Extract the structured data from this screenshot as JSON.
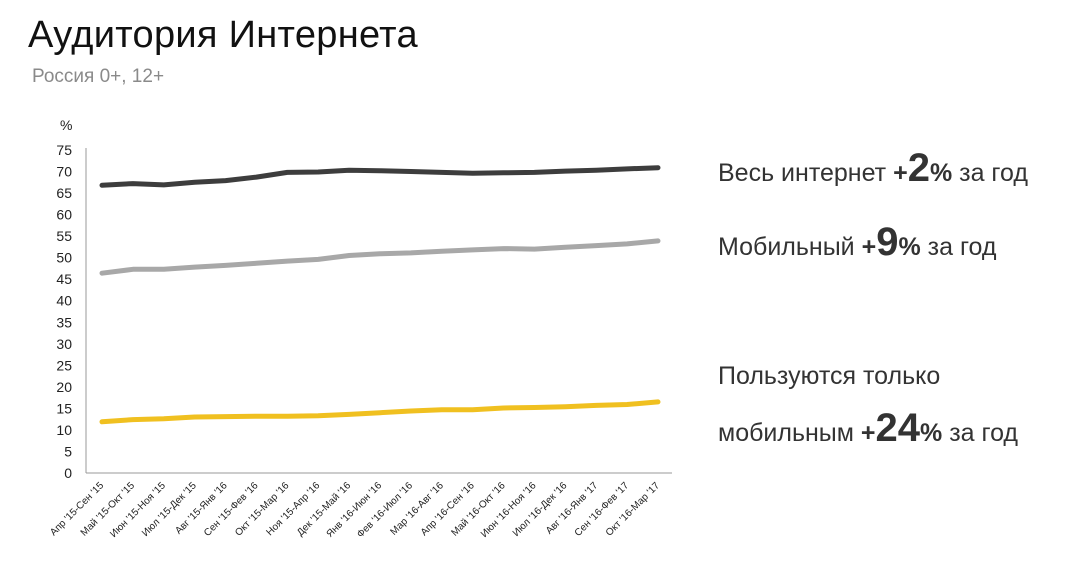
{
  "title": "Аудитория Интернета",
  "subtitle": "Россия 0+, 12+",
  "chart_data": {
    "type": "line",
    "ylabel": "%",
    "ylim": [
      0,
      75
    ],
    "yticks": [
      0,
      5,
      10,
      15,
      20,
      25,
      30,
      35,
      40,
      45,
      50,
      55,
      60,
      65,
      70,
      75
    ],
    "grid": false,
    "categories": [
      "Апр '15-Сен '15",
      "Май '15-Окт '15",
      "Июн '15-Ноя '15",
      "Июл '15-Дек '15",
      "Авг '15-Янв '16",
      "Сен '15-Фев '16",
      "Окт '15-Мар '16",
      "Ноя '15-Апр '16",
      "Дек '15-Май '16",
      "Янв '16-Июн '16",
      "Фев '16-Июл '16",
      "Мар '16-Авг '16",
      "Апр '16-Сен '16",
      "Май '16-Окт '16",
      "Июн '16-Ноя '16",
      "Июл '16-Дек '16",
      "Авг '16-Янв '17",
      "Сен '16-Фев '17",
      "Окт '16-Мар '17"
    ],
    "series": [
      {
        "color": "#3d3d3d",
        "values": [
          66.8,
          67.2,
          66.9,
          67.5,
          67.9,
          68.7,
          69.8,
          69.9,
          70.3,
          70.2,
          70.0,
          69.8,
          69.6,
          69.7,
          69.8,
          70.1,
          70.3,
          70.6,
          70.9
        ]
      },
      {
        "color": "#a8a8a8",
        "values": [
          46.4,
          47.3,
          47.3,
          47.8,
          48.2,
          48.7,
          49.2,
          49.6,
          50.5,
          50.9,
          51.1,
          51.5,
          51.8,
          52.1,
          52.0,
          52.4,
          52.8,
          53.2,
          53.9
        ]
      },
      {
        "color": "#f0c020",
        "values": [
          11.9,
          12.4,
          12.6,
          13.0,
          13.1,
          13.2,
          13.2,
          13.3,
          13.6,
          14.0,
          14.4,
          14.7,
          14.7,
          15.1,
          15.2,
          15.4,
          15.7,
          15.9,
          16.5
        ]
      }
    ]
  },
  "stats": [
    {
      "prefix": "Весь интернет ",
      "sign": "+",
      "number": "2",
      "percent": "%",
      "suffix": " за год"
    },
    {
      "prefix": "Мобильный ",
      "sign": "+",
      "number": "9",
      "percent": "%",
      "suffix": " за год"
    }
  ],
  "stat3": {
    "line1": "Пользуются только",
    "prefix": "мобильным ",
    "sign": "+",
    "number": "24",
    "percent": "%",
    "suffix": " за год"
  }
}
